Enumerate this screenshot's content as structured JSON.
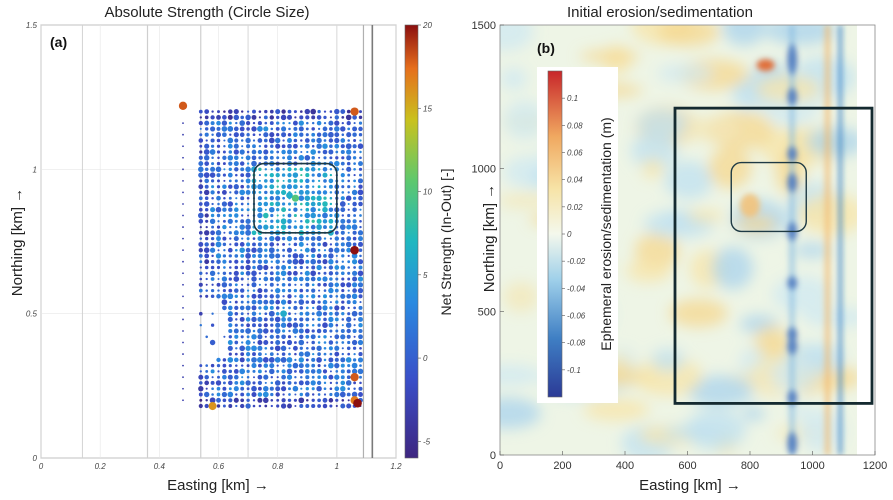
{
  "chart_data": [
    {
      "type": "scatter",
      "panel_label": "(a)",
      "title": "Absolute Strength  (Circle Size)",
      "xlabel": "Easting [km] →",
      "ylabel": "Northing [km] →",
      "xlim": [
        0,
        1.2
      ],
      "ylim": [
        0,
        1.5
      ],
      "xticks": [
        "0",
        "0.2",
        "0.4",
        "0.6",
        "0.8",
        "1",
        "1.2"
      ],
      "yticks": [
        "0",
        "0.5",
        "1",
        "1.5"
      ],
      "grid": true,
      "colorbar": {
        "label": "Net Strength (In-Out) [-]",
        "range": [
          -6,
          20
        ],
        "ticks": [
          "-5",
          "0",
          "5",
          "10",
          "15",
          "20"
        ],
        "colormap": "parula"
      },
      "grid_points": {
        "x_range": [
          0.54,
          1.08
        ],
        "y_range": [
          0.18,
          1.2
        ],
        "spacing_km": 0.02
      },
      "highlight_box": {
        "x": [
          0.72,
          1.0
        ],
        "y": [
          0.78,
          1.02
        ]
      },
      "hotspots": [
        {
          "x": 0.84,
          "y": 0.91,
          "value": 6
        },
        {
          "x": 0.86,
          "y": 0.9,
          "value": 10
        },
        {
          "x": 0.82,
          "y": 0.5,
          "value": 6
        },
        {
          "x": 1.06,
          "y": 0.72,
          "value": 20
        },
        {
          "x": 1.06,
          "y": 0.28,
          "value": 18
        },
        {
          "x": 1.06,
          "y": 0.2,
          "value": 17
        },
        {
          "x": 1.07,
          "y": 0.19,
          "value": 20
        },
        {
          "x": 0.58,
          "y": 0.18,
          "value": 16
        },
        {
          "x": 0.48,
          "y": 1.22,
          "value": 18
        },
        {
          "x": 1.06,
          "y": 1.2,
          "value": 18
        }
      ]
    },
    {
      "type": "heatmap",
      "panel_label": "(b)",
      "title": "Initial erosion/sedimentation",
      "xlabel": "Easting [km] →",
      "ylabel": "Northing [km] →",
      "xlim": [
        0,
        1200
      ],
      "ylim": [
        0,
        1500
      ],
      "xticks": [
        "0",
        "200",
        "400",
        "600",
        "800",
        "1000",
        "1200"
      ],
      "yticks": [
        "0",
        "500",
        "1000",
        "1500"
      ],
      "colorbar": {
        "label": "Ephemeral erosion/sedimentation (m)",
        "range": [
          -0.12,
          0.12
        ],
        "ticks": [
          "0.1",
          "0.08",
          "0.06",
          "0.04",
          "0.02",
          "0",
          "-0.02",
          "-0.04",
          "-0.06",
          "-0.08",
          "-0.1"
        ],
        "colormap": "red-white-blue"
      },
      "outer_box": {
        "x": [
          560,
          1200
        ],
        "y": [
          180,
          1210
        ]
      },
      "inner_box": {
        "x": [
          740,
          980
        ],
        "y": [
          780,
          1020
        ]
      }
    }
  ]
}
